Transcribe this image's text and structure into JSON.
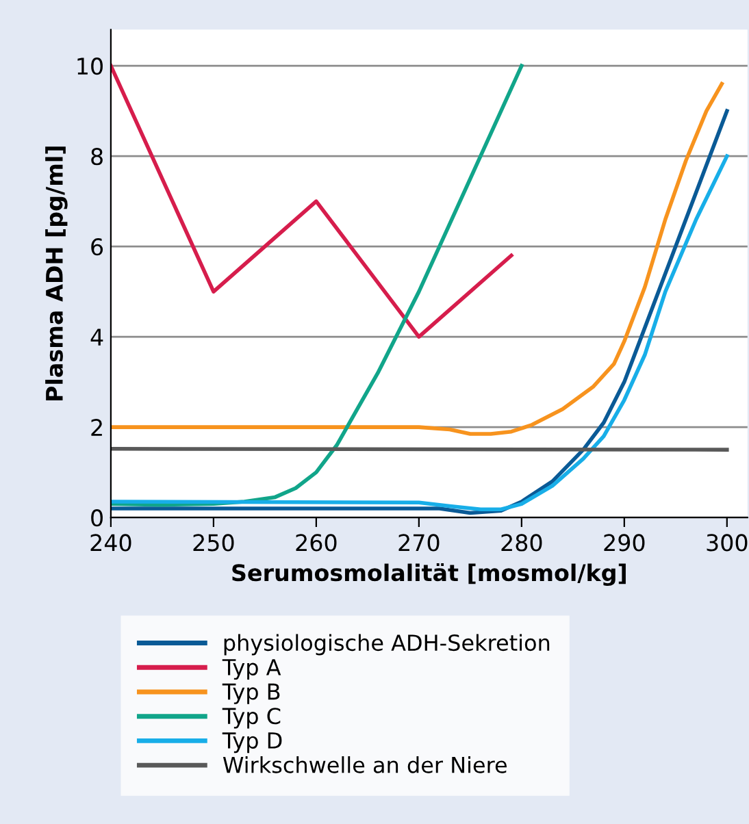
{
  "chart_data": {
    "type": "line",
    "xlabel": "Serumosmolalität [mosmol/kg]",
    "ylabel": "Plasma ADH [pg/ml]",
    "xlim": [
      240,
      302
    ],
    "xticks": [
      240,
      250,
      260,
      270,
      280,
      290,
      300
    ],
    "ylim": [
      0,
      10.8
    ],
    "yticks": [
      0,
      2,
      4,
      6,
      8,
      10
    ],
    "grid": "y",
    "legend": "bottom",
    "marker": "none",
    "line_style": "solid",
    "series": [
      {
        "name": "physiologische ADH-Sekretion",
        "color": "#0a5a96",
        "x": [
          240,
          272,
          275,
          278,
          280,
          283,
          286,
          288,
          290,
          293,
          296,
          298,
          300
        ],
        "values": [
          0.2,
          0.2,
          0.1,
          0.15,
          0.35,
          0.8,
          1.5,
          2.1,
          3.0,
          4.8,
          6.6,
          7.8,
          9.0
        ]
      },
      {
        "name": "Typ A",
        "color": "#d61d4c",
        "x": [
          240,
          250,
          260,
          270,
          279
        ],
        "values": [
          10,
          5,
          7,
          4,
          5.8
        ]
      },
      {
        "name": "Typ B",
        "color": "#f7931e",
        "x": [
          240,
          270,
          273,
          275,
          277,
          279,
          281,
          284,
          287,
          289,
          290,
          292,
          294,
          296,
          298,
          299.5
        ],
        "values": [
          2.0,
          2.0,
          1.95,
          1.85,
          1.85,
          1.9,
          2.05,
          2.4,
          2.9,
          3.4,
          3.9,
          5.1,
          6.6,
          7.9,
          9.0,
          9.6
        ]
      },
      {
        "name": "Typ C",
        "color": "#11a58a",
        "x": [
          240,
          245,
          250,
          253,
          256,
          258,
          260,
          262,
          264,
          266,
          268,
          270,
          272,
          274,
          276,
          278,
          280
        ],
        "values": [
          0.3,
          0.28,
          0.3,
          0.35,
          0.45,
          0.65,
          1.0,
          1.6,
          2.4,
          3.2,
          4.1,
          5.0,
          6.0,
          7.0,
          8.0,
          9.0,
          10.0
        ]
      },
      {
        "name": "Typ D",
        "color": "#18aee8",
        "x": [
          240,
          270,
          273,
          276,
          278,
          280,
          283,
          286,
          288,
          290,
          292,
          294,
          297,
          300
        ],
        "values": [
          0.35,
          0.33,
          0.25,
          0.18,
          0.18,
          0.3,
          0.7,
          1.3,
          1.8,
          2.6,
          3.6,
          5.0,
          6.6,
          8.0
        ]
      },
      {
        "name": "Wirkschwelle an der Niere",
        "color": "#595959",
        "x": [
          240,
          300
        ],
        "values": [
          1.52,
          1.5
        ]
      }
    ]
  }
}
